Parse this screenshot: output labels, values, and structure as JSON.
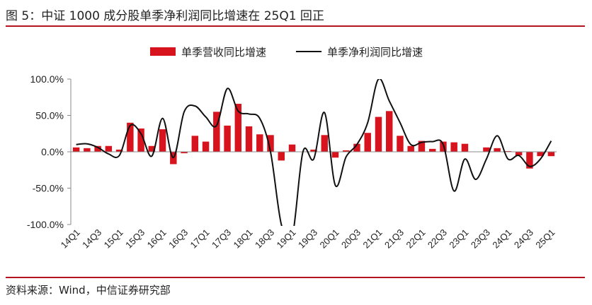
{
  "title": "图 5：中证 1000 成分股单季净利润同比增速在 25Q1 回正",
  "source": "资料来源：Wind，中信证券研究部",
  "colors": {
    "bar": "#d7141e",
    "line": "#111111",
    "rule": "#b3141e"
  },
  "chart_data": {
    "type": "bar",
    "categories": [
      "14Q1",
      "14Q2",
      "14Q3",
      "14Q4",
      "15Q1",
      "15Q2",
      "15Q3",
      "15Q4",
      "16Q1",
      "16Q2",
      "16Q3",
      "16Q4",
      "17Q1",
      "17Q2",
      "17Q3",
      "17Q4",
      "18Q1",
      "18Q2",
      "18Q3",
      "18Q4",
      "19Q1",
      "19Q2",
      "19Q3",
      "19Q4",
      "20Q1",
      "20Q2",
      "20Q3",
      "20Q4",
      "21Q1",
      "21Q2",
      "21Q3",
      "21Q4",
      "22Q1",
      "22Q2",
      "22Q3",
      "22Q4",
      "23Q1",
      "23Q2",
      "23Q3",
      "23Q4",
      "24Q1",
      "24Q2",
      "24Q3",
      "24Q4",
      "25Q1"
    ],
    "tick_labels": [
      "14Q1",
      "14Q3",
      "15Q1",
      "15Q3",
      "16Q1",
      "16Q3",
      "17Q1",
      "17Q3",
      "18Q1",
      "18Q3",
      "19Q1",
      "19Q3",
      "20Q1",
      "20Q3",
      "21Q1",
      "21Q3",
      "22Q1",
      "22Q3",
      "23Q1",
      "23Q3",
      "24Q1",
      "24Q3",
      "25Q1"
    ],
    "series": [
      {
        "name": "单季营收同比增速",
        "type": "bar",
        "values": [
          6,
          5,
          8,
          8,
          3,
          40,
          32,
          8,
          31,
          -17,
          -2,
          22,
          14,
          55,
          36,
          66,
          35,
          24,
          23,
          -12,
          10,
          0,
          3,
          23,
          -8,
          2,
          11,
          26,
          48,
          56,
          22,
          8,
          15,
          4,
          14,
          13,
          11,
          0,
          6,
          5,
          1,
          -5,
          -23,
          -6,
          -6
        ]
      },
      {
        "name": "单季净利润同比增速",
        "type": "line",
        "values": [
          10,
          11,
          6,
          -3,
          -5,
          36,
          25,
          -6,
          46,
          -8,
          55,
          63,
          48,
          36,
          87,
          56,
          52,
          46,
          0,
          -100,
          -118,
          0,
          -10,
          54,
          -46,
          -7,
          10,
          40,
          100,
          70,
          40,
          10,
          13,
          14,
          10,
          -54,
          -10,
          -38,
          -10,
          22,
          -10,
          -5,
          -20,
          -10,
          15
        ]
      }
    ],
    "ylim": [
      -100,
      100
    ],
    "yticks": [
      "100.0%",
      "50.0%",
      "0.0%",
      "-50.0%",
      "-100.0%"
    ],
    "ytick_values": [
      100,
      50,
      0,
      -50,
      -100
    ],
    "legend_position": "top"
  }
}
